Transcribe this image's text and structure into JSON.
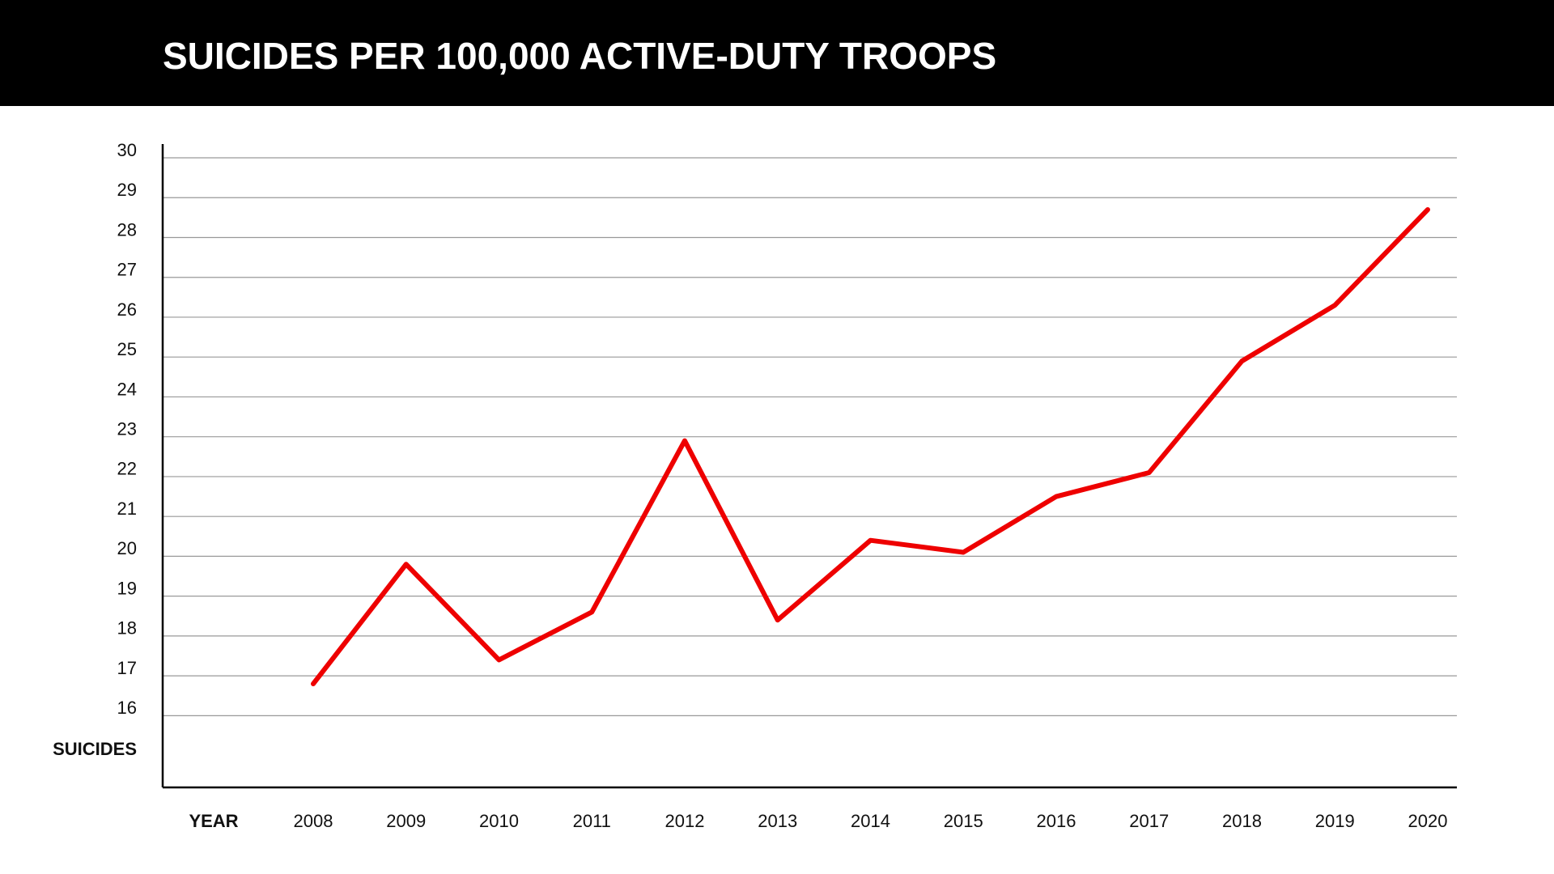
{
  "chart_data": {
    "type": "line",
    "title": "SUICIDES PER 100,000 ACTIVE-DUTY TROOPS",
    "x_label": "YEAR",
    "y_label": "SUICIDES",
    "categories": [
      "2008",
      "2009",
      "2010",
      "2011",
      "2012",
      "2013",
      "2014",
      "2015",
      "2016",
      "2017",
      "2018",
      "2019",
      "2020"
    ],
    "values": [
      16.8,
      19.8,
      17.4,
      18.6,
      22.9,
      18.4,
      20.4,
      20.1,
      21.5,
      22.1,
      24.9,
      26.3,
      28.7
    ],
    "color": "#ee0000",
    "ylim": [
      14.2,
      30
    ],
    "yticks": [
      16,
      17,
      18,
      19,
      20,
      21,
      22,
      23,
      24,
      25,
      26,
      27,
      28,
      29,
      30
    ],
    "grid": true
  }
}
